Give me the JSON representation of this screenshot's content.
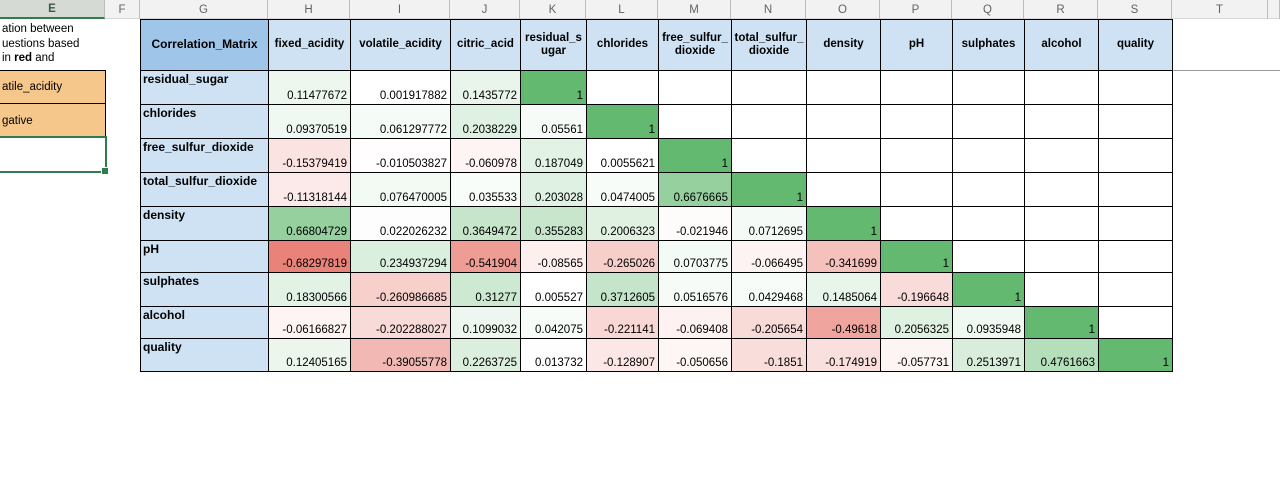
{
  "spreadsheet": {
    "column_header_letters": [
      "E",
      "F",
      "G",
      "H",
      "I",
      "J",
      "K",
      "L",
      "M",
      "N",
      "O",
      "P",
      "Q",
      "R",
      "S",
      "T",
      ""
    ],
    "selected_column": "E"
  },
  "left_panel": {
    "note_lines": [
      [
        {
          "text": "ation between",
          "bold": false
        }
      ],
      [
        {
          "text": "uestions based",
          "bold": false
        }
      ],
      [
        {
          "text": "in ",
          "bold": false
        },
        {
          "text": "red",
          "bold": true
        },
        {
          "text": " and",
          "bold": false
        }
      ]
    ],
    "highlight_cells": [
      "atile_acidity",
      "gative"
    ]
  },
  "matrix": {
    "corner_label": "Correlation_Matrix",
    "columns": [
      "fixed_acidity",
      "volatile_acidity",
      "citric_acid",
      "residual_sugar",
      "chlorides",
      "free_sulfur_dioxide",
      "total_sulfur_dioxide",
      "density",
      "pH",
      "sulphates",
      "alcohol",
      "quality"
    ],
    "rows": [
      {
        "label": "residual_sugar",
        "values": [
          "0.11477672",
          "0.001917882",
          "0.1435772",
          "1",
          null,
          null,
          null,
          null,
          null,
          null,
          null,
          null
        ]
      },
      {
        "label": "chlorides",
        "values": [
          "0.09370519",
          "0.061297772",
          "0.2038229",
          "0.05561",
          "1",
          null,
          null,
          null,
          null,
          null,
          null,
          null
        ]
      },
      {
        "label": "free_sulfur_dioxide",
        "values": [
          "-0.15379419",
          "-0.010503827",
          "-0.060978",
          "0.187049",
          "0.0055621",
          "1",
          null,
          null,
          null,
          null,
          null,
          null
        ]
      },
      {
        "label": "total_sulfur_dioxide",
        "values": [
          "-0.11318144",
          "0.076470005",
          "0.035533",
          "0.203028",
          "0.0474005",
          "0.6676665",
          "1",
          null,
          null,
          null,
          null,
          null
        ]
      },
      {
        "label": "density",
        "values": [
          "0.66804729",
          "0.022026232",
          "0.3649472",
          "0.355283",
          "0.2006323",
          "-0.021946",
          "0.0712695",
          "1",
          null,
          null,
          null,
          null
        ]
      },
      {
        "label": "pH",
        "values": [
          "-0.68297819",
          "0.234937294",
          "-0.541904",
          "-0.08565",
          "-0.265026",
          "0.0703775",
          "-0.066495",
          "-0.341699",
          "1",
          null,
          null,
          null
        ]
      },
      {
        "label": "sulphates",
        "values": [
          "0.18300566",
          "-0.260986685",
          "0.31277",
          "0.005527",
          "0.3712605",
          "0.0516576",
          "0.0429468",
          "0.1485064",
          "-0.196648",
          "1",
          null,
          null
        ]
      },
      {
        "label": "alcohol",
        "values": [
          "-0.06166827",
          "-0.202288027",
          "0.1099032",
          "0.042075",
          "-0.221141",
          "-0.069408",
          "-0.205654",
          "-0.49618",
          "0.2056325",
          "0.0935948",
          "1",
          null
        ]
      },
      {
        "label": "quality",
        "values": [
          "0.12405165",
          "-0.39055778",
          "0.2263725",
          "0.013732",
          "-0.128907",
          "-0.050656",
          "-0.1851",
          "-0.174919",
          "-0.057731",
          "0.2513971",
          "0.4761663",
          "1"
        ]
      }
    ]
  },
  "colors": {
    "corner_fill": "#9fc5e8",
    "header_fill": "#cfe2f3",
    "label_fill": "#cfe2f3",
    "scale_max_color": "#63b96f",
    "scale_min_color": "#e9837a",
    "scale_mid_color": "#ffffff",
    "scale_domain_min": -0.68297819,
    "scale_domain_max": 1,
    "highlight_fill": "#f6c78a",
    "selection_color": "#2f7d4f"
  }
}
